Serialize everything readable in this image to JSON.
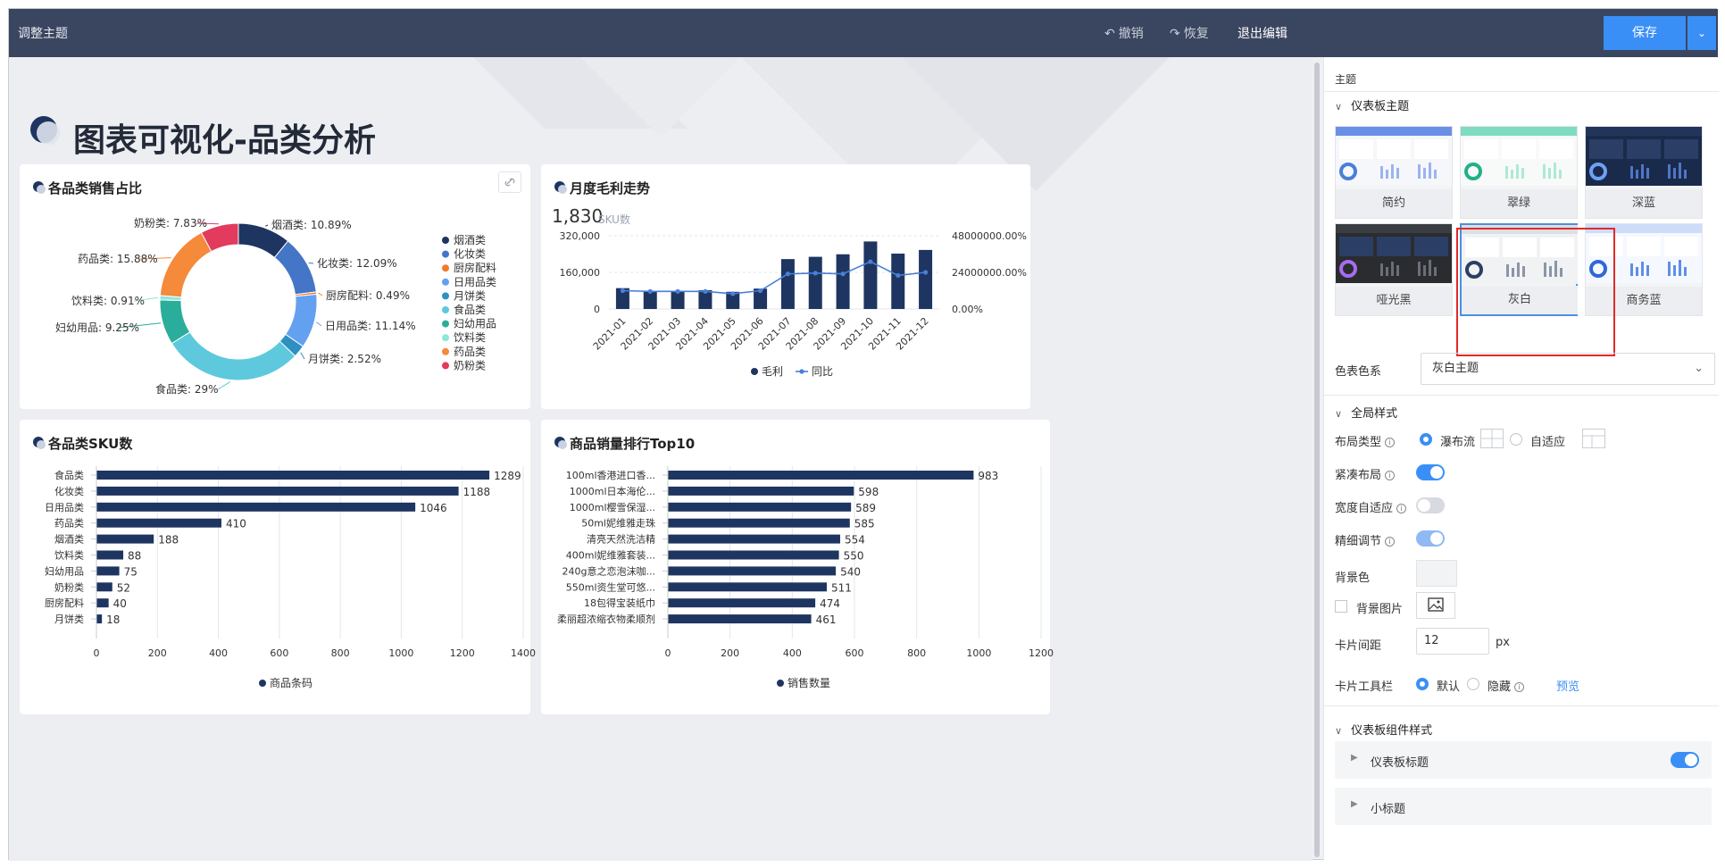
{
  "topbar": {
    "title": "调整主题",
    "undo_label": "撤销",
    "redo_label": "恢复",
    "exit_label": "退出编辑",
    "save_label": "保存"
  },
  "dashboard": {
    "title": "图表可视化-品类分析",
    "cards": {
      "pie": {
        "title": "各品类销售占比"
      },
      "line": {
        "title": "月度毛利走势",
        "kpi_value": "1,830",
        "kpi_unit": "SKU数"
      },
      "sku": {
        "title": "各品类SKU数"
      },
      "top10": {
        "title": "商品销量排行Top10"
      }
    }
  },
  "chart_data": [
    {
      "type": "pie",
      "title": "各品类销售占比",
      "slices": [
        {
          "name": "烟酒类",
          "value": 10.89,
          "label": "烟酒类: 10.89%",
          "color": "#1e3561"
        },
        {
          "name": "化妆类",
          "value": 12.09,
          "label": "化妆类: 12.09%",
          "color": "#4575c7"
        },
        {
          "name": "厨房配料",
          "value": 0.49,
          "label": "厨房配料: 0.49%",
          "color": "#f2792b"
        },
        {
          "name": "日用品类",
          "value": 11.14,
          "label": "日用品类: 11.14%",
          "color": "#64a0f0"
        },
        {
          "name": "月饼类",
          "value": 2.52,
          "label": "月饼类: 2.52%",
          "color": "#2e90c0"
        },
        {
          "name": "食品类",
          "value": 29,
          "label": "食品类: 29%",
          "color": "#5ec9dd"
        },
        {
          "name": "妇幼用品",
          "value": 9.25,
          "label": "妇幼用品: 9.25%",
          "color": "#2aad9a"
        },
        {
          "name": "饮料类",
          "value": 0.91,
          "label": "饮料类: 0.91%",
          "color": "#8fe6da"
        },
        {
          "name": "药品类",
          "value": 15.88,
          "label": "药品类: 15.88%",
          "color": "#f48a3a"
        },
        {
          "name": "奶粉类",
          "value": 7.83,
          "label": "奶粉类: 7.83%",
          "color": "#e23b5e"
        }
      ],
      "legend_position": "right"
    },
    {
      "type": "bar+line",
      "title": "月度毛利走势",
      "categories": [
        "2021-01",
        "2021-02",
        "2021-03",
        "2021-04",
        "2021-05",
        "2021-06",
        "2021-07",
        "2021-08",
        "2021-09",
        "2021-10",
        "2021-11",
        "2021-12"
      ],
      "series": [
        {
          "name": "毛利",
          "type": "bar",
          "axis": "left",
          "values": [
            91000,
            80000,
            78000,
            82000,
            75000,
            89000,
            218000,
            228000,
            239000,
            295000,
            242000,
            258000
          ],
          "color": "#1e3561"
        },
        {
          "name": "同比",
          "type": "line",
          "axis": "right",
          "values": [
            12000000,
            11500000,
            11500000,
            11500000,
            10000000,
            12000000,
            23000000,
            23500000,
            23000000,
            31000000,
            22000000,
            24000000
          ],
          "color": "#4a7fd6"
        }
      ],
      "y_left": {
        "ticks": [
          "0",
          "160,000",
          "320,000"
        ],
        "range": [
          0,
          320000
        ]
      },
      "y_right": {
        "ticks": [
          "0.00%",
          "24000000.00%",
          "48000000.00%"
        ],
        "range": [
          0,
          48000000
        ]
      },
      "legend": [
        "毛利",
        "同比"
      ],
      "legend_position": "bottom"
    },
    {
      "type": "bar",
      "orientation": "horizontal",
      "title": "各品类SKU数",
      "categories": [
        "食品类",
        "化妆类",
        "日用品类",
        "药品类",
        "烟酒类",
        "饮料类",
        "妇幼用品",
        "奶粉类",
        "厨房配料",
        "月饼类"
      ],
      "values": [
        1289,
        1188,
        1046,
        410,
        188,
        88,
        75,
        52,
        40,
        18
      ],
      "x_ticks": [
        "0",
        "200",
        "400",
        "600",
        "800",
        "1000",
        "1200",
        "1400"
      ],
      "xlim": [
        0,
        1400
      ],
      "legend": [
        "商品条码"
      ],
      "color": "#1e3561"
    },
    {
      "type": "bar",
      "orientation": "horizontal",
      "title": "商品销量排行Top10",
      "categories": [
        "100ml香港进口香...",
        "1000ml日本海伦...",
        "1000ml樱雪保湿...",
        "50ml妮维雅走珠",
        "清亮天然洗洁精",
        "400ml妮维雅套装...",
        "240g意之恋泡沫咖...",
        "550ml资生堂可悠...",
        "18包得宝装纸巾",
        "柔丽超浓缩衣物柔顺剂"
      ],
      "values": [
        983,
        598,
        589,
        585,
        554,
        550,
        540,
        511,
        474,
        461
      ],
      "x_ticks": [
        "0",
        "200",
        "400",
        "600",
        "800",
        "1000",
        "1200"
      ],
      "xlim": [
        0,
        1200
      ],
      "legend": [
        "销售数量"
      ],
      "color": "#1e3561"
    }
  ],
  "panel": {
    "header": "主题",
    "dashboard_theme": {
      "title": "仪表板主题",
      "themes": [
        {
          "label": "简约",
          "style": "light"
        },
        {
          "label": "翠绿",
          "style": "green"
        },
        {
          "label": "深蓝",
          "style": "navy"
        },
        {
          "label": "哑光黑",
          "style": "dark"
        },
        {
          "label": "灰白",
          "style": "gray",
          "selected": true
        },
        {
          "label": "商务蓝",
          "style": "blue"
        }
      ],
      "color_scheme_label": "色表色系",
      "color_scheme_value": "灰白主题"
    },
    "global_style": {
      "title": "全局样式",
      "layout_type_label": "布局类型",
      "layout_waterfall": "瀑布流",
      "layout_adaptive": "自适应",
      "compact_label": "紧凑布局",
      "width_adaptive_label": "宽度自适应",
      "fine_tune_label": "精细调节",
      "bg_color_label": "背景色",
      "bg_image_label": "背景图片",
      "card_gap_label": "卡片间距",
      "card_gap_value": "12",
      "card_gap_unit": "px",
      "card_toolbar_label": "卡片工具栏",
      "toolbar_default": "默认",
      "toolbar_hidden": "隐藏",
      "preview_label": "预览"
    },
    "component_style": {
      "title": "仪表板组件样式",
      "dashboard_title_label": "仪表板标题",
      "subtitle_label": "小标题"
    }
  }
}
